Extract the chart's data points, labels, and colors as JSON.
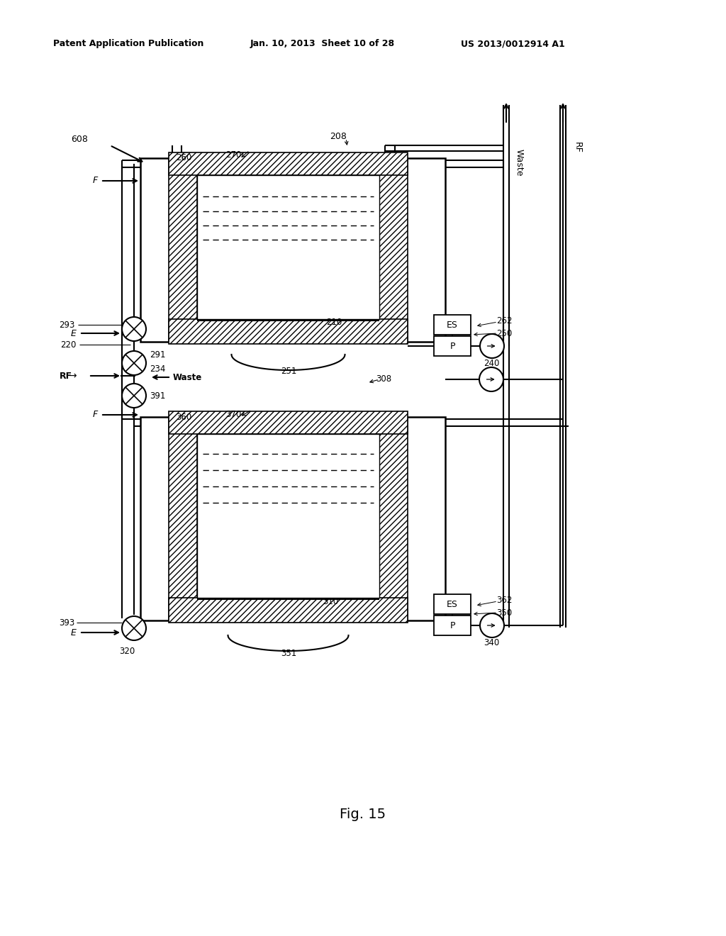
{
  "bg_color": "#ffffff",
  "header_left": "Patent Application Publication",
  "header_center": "Jan. 10, 2013  Sheet 10 of 28",
  "header_right": "US 2013/0012914 A1",
  "figure_label": "Fig. 15",
  "line_color": "#000000"
}
